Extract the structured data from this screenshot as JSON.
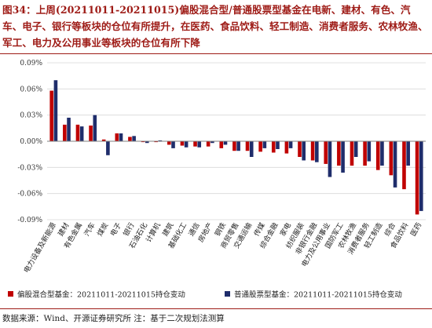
{
  "title": "图34：上周(20211011-20211015)偏股混合型/普通股票型基金在电新、建材、有色、汽车、电子、银行等板块的仓位有所提升，在医药、食品饮料、轻工制造、消费者服务、农林牧渔、军工、电力及公用事业等板块的仓位有所下降",
  "source": "数据来源：Wind、开源证券研究所  注：基于二次规划法测算",
  "colors": {
    "series1": "#c00000",
    "series2": "#1f2d6b",
    "title": "#9e1b16"
  },
  "chart_data": {
    "type": "bar",
    "title": "",
    "xlabel": "",
    "ylabel": "",
    "ylim": [
      -0.09,
      0.09
    ],
    "yticks": [
      0.09,
      0.06,
      0.03,
      0.0,
      -0.03,
      -0.06,
      -0.09
    ],
    "ytick_labels": [
      "0.09%",
      "0.06%",
      "0.03%",
      "0.00%",
      "-0.03%",
      "-0.06%",
      "-0.09%"
    ],
    "grid": true,
    "legend_position": "bottom",
    "categories": [
      "电力设备及新能源",
      "建材",
      "有色金属",
      "汽车",
      "煤炭",
      "电子",
      "银行",
      "石油石化",
      "计算机",
      "建筑",
      "基础化工",
      "通信",
      "房地产",
      "钢铁",
      "商贸零售",
      "交通运输",
      "传媒",
      "综合金融",
      "家电",
      "纺织服装",
      "非银行金融",
      "电力及公用事业",
      "国防军工",
      "农林牧渔",
      "消费者服务",
      "轻工制造",
      "综合",
      "食品饮料",
      "医药"
    ],
    "series": [
      {
        "name": "偏股混合型基金：20211011-20211015持仓变动",
        "values": [
          0.058,
          0.019,
          0.019,
          0.018,
          0.002,
          0.009,
          0.005,
          -0.001,
          -0.001,
          -0.004,
          -0.005,
          -0.006,
          -0.006,
          -0.008,
          -0.011,
          -0.011,
          -0.012,
          -0.013,
          -0.014,
          -0.018,
          -0.022,
          -0.026,
          -0.028,
          -0.028,
          -0.028,
          -0.033,
          -0.039,
          -0.055,
          -0.084
        ]
      },
      {
        "name": "普通股票型基金：20211011-20211015持仓变动",
        "values": [
          0.07,
          0.027,
          0.017,
          0.03,
          -0.016,
          0.009,
          0.006,
          -0.002,
          0.001,
          -0.008,
          -0.007,
          -0.007,
          -0.002,
          -0.004,
          -0.011,
          -0.018,
          -0.008,
          -0.009,
          -0.008,
          -0.022,
          -0.024,
          -0.041,
          -0.036,
          -0.018,
          -0.023,
          -0.028,
          -0.053,
          -0.028,
          -0.08
        ]
      }
    ]
  }
}
